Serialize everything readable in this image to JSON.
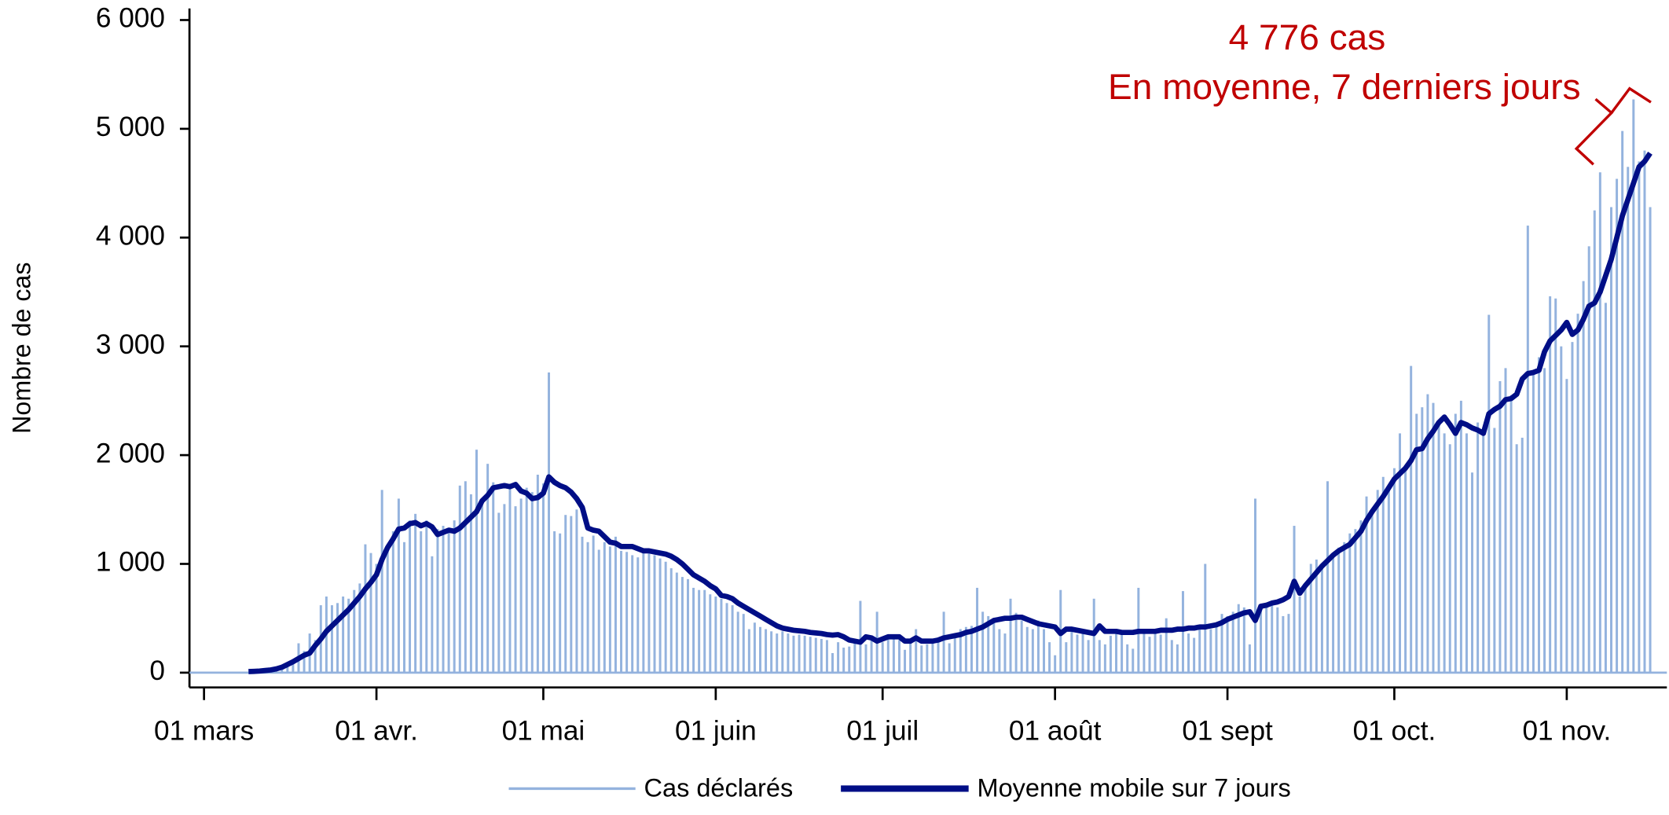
{
  "chart_data": {
    "type": "bar-line",
    "y_label": "Nombre de cas",
    "annotations": [
      "4 776 cas",
      "En moyenne, 7 derniers jours"
    ],
    "annotation_color": "#c00000",
    "x": [
      0,
      1,
      2,
      3,
      4,
      5,
      6,
      7,
      8,
      9,
      10,
      11,
      12,
      13,
      14,
      15,
      16,
      17,
      18,
      19,
      20,
      21,
      22,
      23,
      24,
      25,
      26,
      27,
      28,
      29,
      30,
      31,
      32,
      33,
      34,
      35,
      36,
      37,
      38,
      39,
      40,
      41,
      42,
      43,
      44,
      45,
      46,
      47,
      48,
      49,
      50,
      51,
      52,
      53,
      54,
      55,
      56,
      57,
      58,
      59,
      60,
      61,
      62,
      63,
      64,
      65,
      66,
      67,
      68,
      69,
      70,
      71,
      72,
      73,
      74,
      75,
      76,
      77,
      78,
      79,
      80,
      81,
      82,
      83,
      84,
      85,
      86,
      87,
      88,
      89,
      90,
      91,
      92,
      93,
      94,
      95,
      96,
      97,
      98,
      99,
      100,
      101,
      102,
      103,
      104,
      105,
      106,
      107,
      108,
      109,
      110,
      111,
      112,
      113,
      114,
      115,
      116,
      117,
      118,
      119,
      120,
      121,
      122,
      123,
      124,
      125,
      126,
      127,
      128,
      129,
      130,
      131,
      132,
      133,
      134,
      135,
      136,
      137,
      138,
      139,
      140,
      141,
      142,
      143,
      144,
      145,
      146,
      147,
      148,
      149,
      150,
      151,
      152,
      153,
      154,
      155,
      156,
      157,
      158,
      159,
      160,
      161,
      162,
      163,
      164,
      165,
      166,
      167,
      168,
      169,
      170,
      171,
      172,
      173,
      174,
      175,
      176,
      177,
      178,
      179,
      180,
      181,
      182,
      183,
      184,
      185,
      186,
      187,
      188,
      189,
      190,
      191,
      192,
      193,
      194,
      195,
      196,
      197,
      198,
      199,
      200,
      201,
      202,
      203,
      204,
      205,
      206,
      207,
      208,
      209,
      210,
      211,
      212,
      213,
      214,
      215,
      216,
      217,
      218,
      219,
      220,
      221,
      222,
      223,
      224,
      225,
      226,
      227,
      228,
      229,
      230,
      231,
      232,
      233,
      234,
      235,
      236,
      237,
      238,
      239,
      240,
      241,
      242,
      243,
      244,
      245,
      246,
      247,
      248,
      249,
      250,
      251,
      252,
      253,
      254,
      255,
      256,
      257,
      258,
      259,
      260
    ],
    "series": [
      {
        "name": "Cas déclarés",
        "kind": "bar",
        "color": "#94b3de",
        "values": [
          0,
          0,
          0,
          0,
          0,
          0,
          0,
          0,
          5,
          10,
          15,
          20,
          25,
          40,
          60,
          90,
          120,
          270,
          200,
          360,
          300,
          620,
          700,
          620,
          640,
          700,
          680,
          760,
          820,
          1180,
          1100,
          1000,
          1680,
          1180,
          1300,
          1600,
          1200,
          1400,
          1460,
          1300,
          1400,
          1070,
          1320,
          1350,
          1290,
          1400,
          1720,
          1760,
          1640,
          2050,
          1600,
          1920,
          1750,
          1470,
          1550,
          1720,
          1530,
          1600,
          1700,
          1660,
          1820,
          1740,
          2760,
          1300,
          1280,
          1450,
          1440,
          1500,
          1250,
          1200,
          1260,
          1130,
          1200,
          1160,
          1250,
          1120,
          1110,
          1080,
          1060,
          1100,
          1140,
          1080,
          1050,
          1020,
          960,
          920,
          880,
          860,
          780,
          760,
          760,
          720,
          700,
          680,
          640,
          620,
          560,
          540,
          400,
          460,
          420,
          400,
          380,
          360,
          380,
          360,
          340,
          350,
          340,
          330,
          320,
          310,
          300,
          180,
          280,
          230,
          240,
          300,
          660,
          260,
          320,
          560,
          280,
          320,
          330,
          300,
          210,
          280,
          400,
          250,
          260,
          280,
          300,
          560,
          270,
          320,
          400,
          420,
          430,
          780,
          560,
          520,
          480,
          400,
          360,
          680,
          550,
          480,
          420,
          400,
          480,
          400,
          280,
          160,
          760,
          280,
          380,
          350,
          380,
          300,
          680,
          300,
          260,
          340,
          400,
          380,
          260,
          220,
          780,
          360,
          330,
          400,
          350,
          500,
          300,
          260,
          750,
          360,
          320,
          440,
          1000,
          400,
          420,
          540,
          520,
          560,
          630,
          600,
          260,
          1600,
          580,
          620,
          660,
          600,
          520,
          540,
          1350,
          700,
          800,
          1000,
          1040,
          960,
          1760,
          1100,
          1150,
          1200,
          1280,
          1320,
          1400,
          1620,
          1500,
          1680,
          1800,
          1720,
          1880,
          2200,
          1900,
          2820,
          2380,
          2440,
          2560,
          2480,
          2300,
          2200,
          2100,
          2380,
          2500,
          2200,
          1840,
          2300,
          2250,
          3290,
          2250,
          2680,
          2800,
          2550,
          2100,
          2160,
          4110,
          2780,
          2900,
          2800,
          3460,
          3440,
          3000,
          2700,
          3040,
          3300,
          3600,
          3920,
          4250,
          4600,
          3400,
          4280,
          4540,
          4980,
          4650,
          5270,
          4700,
          4800,
          4280
        ]
      },
      {
        "name": "Moyenne mobile sur 7 jours",
        "kind": "line",
        "color": "#000e86",
        "values": [
          null,
          null,
          null,
          null,
          null,
          null,
          null,
          null,
          10,
          12,
          15,
          20,
          25,
          35,
          50,
          75,
          100,
          130,
          160,
          180,
          250,
          310,
          380,
          430,
          480,
          530,
          580,
          640,
          700,
          770,
          830,
          900,
          1040,
          1150,
          1230,
          1320,
          1330,
          1370,
          1380,
          1350,
          1370,
          1340,
          1270,
          1290,
          1310,
          1300,
          1330,
          1380,
          1430,
          1480,
          1580,
          1630,
          1700,
          1710,
          1720,
          1710,
          1730,
          1670,
          1650,
          1600,
          1610,
          1650,
          1800,
          1750,
          1720,
          1700,
          1660,
          1600,
          1520,
          1330,
          1310,
          1300,
          1250,
          1200,
          1190,
          1160,
          1160,
          1160,
          1140,
          1120,
          1120,
          1110,
          1100,
          1090,
          1070,
          1040,
          1000,
          950,
          900,
          870,
          840,
          800,
          770,
          710,
          700,
          680,
          640,
          610,
          580,
          550,
          520,
          490,
          460,
          430,
          410,
          400,
          390,
          385,
          380,
          370,
          365,
          360,
          350,
          345,
          350,
          330,
          300,
          290,
          280,
          330,
          320,
          290,
          310,
          330,
          330,
          330,
          290,
          290,
          320,
          290,
          290,
          290,
          300,
          320,
          330,
          340,
          350,
          370,
          380,
          400,
          420,
          450,
          480,
          490,
          500,
          500,
          510,
          510,
          490,
          470,
          450,
          440,
          430,
          420,
          360,
          400,
          400,
          390,
          380,
          370,
          360,
          430,
          380,
          380,
          380,
          370,
          370,
          370,
          380,
          380,
          380,
          380,
          390,
          390,
          390,
          400,
          400,
          410,
          410,
          420,
          420,
          430,
          440,
          460,
          490,
          510,
          530,
          550,
          560,
          480,
          610,
          620,
          640,
          650,
          670,
          700,
          840,
          730,
          800,
          860,
          920,
          980,
          1030,
          1080,
          1120,
          1150,
          1180,
          1240,
          1300,
          1400,
          1480,
          1550,
          1620,
          1700,
          1780,
          1830,
          1880,
          1950,
          2050,
          2060,
          2150,
          2220,
          2300,
          2350,
          2280,
          2200,
          2300,
          2280,
          2250,
          2230,
          2200,
          2380,
          2420,
          2450,
          2510,
          2520,
          2560,
          2700,
          2750,
          2760,
          2780,
          2950,
          3050,
          3100,
          3150,
          3220,
          3110,
          3150,
          3250,
          3370,
          3400,
          3500,
          3650,
          3800,
          4000,
          4200,
          4350,
          4500,
          4650,
          4700,
          4776
        ]
      }
    ],
    "xlim": [
      -3,
      263
    ],
    "xticks": [
      {
        "value": 0,
        "label": "01 mars"
      },
      {
        "value": 31,
        "label": "01 avr."
      },
      {
        "value": 61,
        "label": "01 mai"
      },
      {
        "value": 92,
        "label": "01 juin"
      },
      {
        "value": 122,
        "label": "01 juil"
      },
      {
        "value": 153,
        "label": "01 août"
      },
      {
        "value": 184,
        "label": "01 sept"
      },
      {
        "value": 214,
        "label": "01 oct."
      },
      {
        "value": 245,
        "label": "01 nov."
      }
    ],
    "ylim": [
      0,
      6000
    ],
    "yticks": [
      0,
      {
        "value": 1000,
        "label": "1 000"
      },
      {
        "value": 2000,
        "label": "2 000"
      },
      {
        "value": 3000,
        "label": "3 000"
      },
      {
        "value": 4000,
        "label": "4 000"
      },
      {
        "value": 5000,
        "label": "5 000"
      },
      {
        "value": 6000,
        "label": "6 000"
      }
    ],
    "grid": false,
    "legend": "bottom"
  }
}
